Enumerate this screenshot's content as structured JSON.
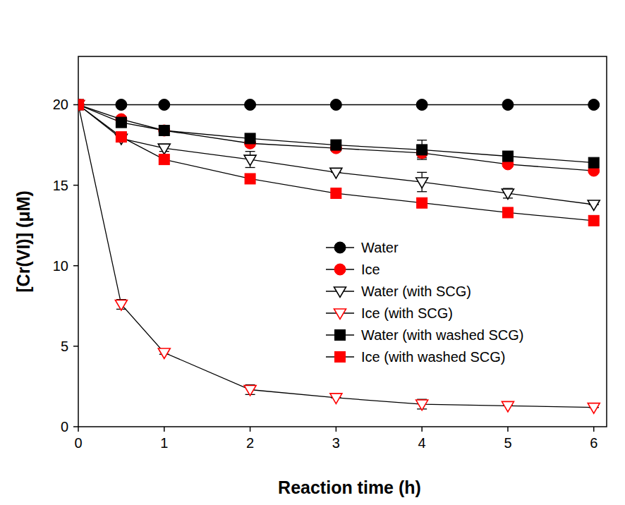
{
  "chart_data": {
    "type": "line",
    "x_label": "Reaction time (h)",
    "y_label": "[Cr(VI)] (μM)",
    "x": [
      0,
      0.5,
      1,
      2,
      3,
      4,
      5,
      6
    ],
    "xlim": [
      0,
      6.15
    ],
    "xticks": [
      0,
      1,
      2,
      3,
      4,
      5,
      6
    ],
    "ylim": [
      0,
      23
    ],
    "yticks": [
      0,
      5,
      10,
      15,
      20
    ],
    "legend": "lower right",
    "series": [
      {
        "name": "Water",
        "color": "#000000",
        "marker": "circle",
        "values": [
          20,
          20,
          20,
          20,
          20,
          20,
          20,
          20
        ],
        "errors": [
          0,
          0,
          0,
          0,
          0,
          0,
          0,
          0
        ]
      },
      {
        "name": "Ice",
        "color": "#ff0000",
        "marker": "circle",
        "values": [
          20,
          19.1,
          18.4,
          17.6,
          17.3,
          17.0,
          16.3,
          15.9
        ],
        "errors": [
          0,
          0,
          0,
          0.2,
          0.2,
          0.3,
          0,
          0
        ]
      },
      {
        "name": "Water (with SCG)",
        "color": "#000000",
        "marker": "triangle-down-open",
        "values": [
          20,
          17.9,
          17.3,
          16.6,
          15.8,
          15.2,
          14.5,
          13.8
        ],
        "errors": [
          0,
          0.2,
          0.2,
          0.5,
          0,
          0.6,
          0.3,
          0
        ]
      },
      {
        "name": "Ice (with SCG)",
        "color": "#ff0000",
        "marker": "triangle-down-open",
        "values": [
          20,
          7.6,
          4.6,
          2.3,
          1.8,
          1.4,
          1.3,
          1.2
        ],
        "errors": [
          0,
          0.3,
          0.1,
          0.3,
          0,
          0.3,
          0,
          0
        ]
      },
      {
        "name": "Water (with washed SCG)",
        "color": "#000000",
        "marker": "square",
        "values": [
          20,
          18.9,
          18.4,
          17.9,
          17.5,
          17.2,
          16.8,
          16.4
        ],
        "errors": [
          0,
          0,
          0,
          0,
          0,
          0.6,
          0,
          0
        ]
      },
      {
        "name": "Ice (with washed SCG)",
        "color": "#ff0000",
        "marker": "square",
        "values": [
          20,
          18.0,
          16.6,
          15.4,
          14.5,
          13.9,
          13.3,
          12.8
        ],
        "errors": [
          0,
          0,
          0,
          0,
          0,
          0,
          0,
          0
        ]
      }
    ]
  }
}
